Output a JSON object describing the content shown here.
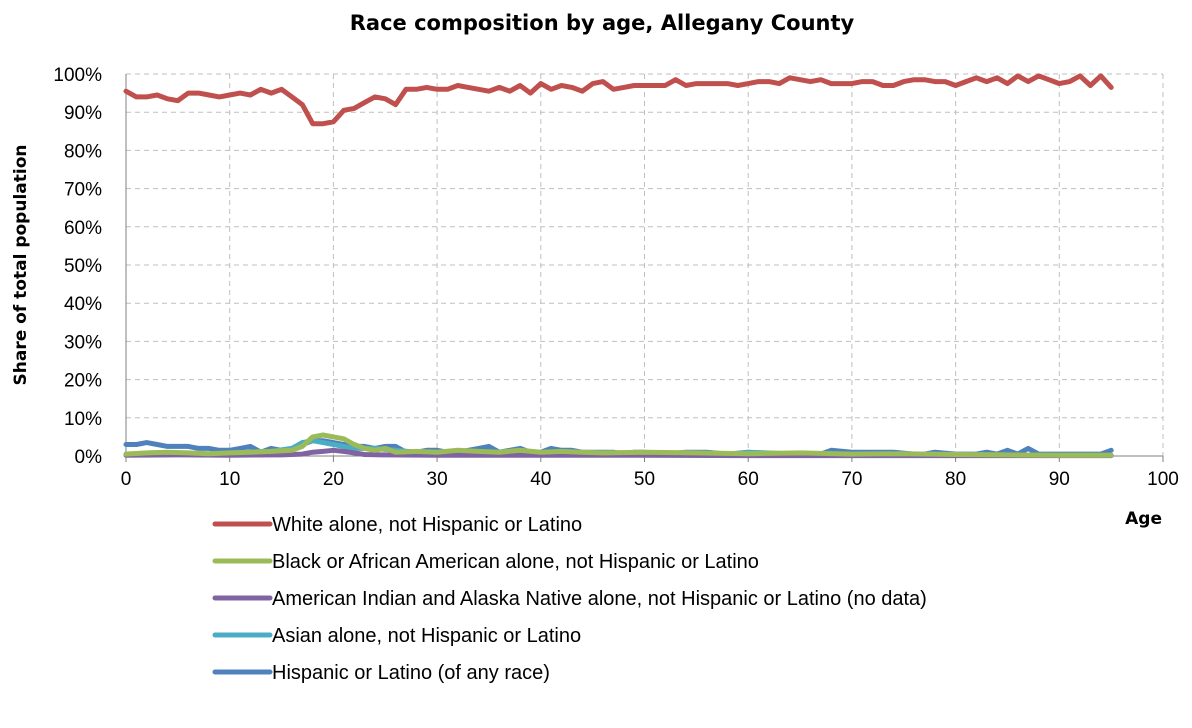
{
  "chart_data": {
    "type": "line",
    "title": "Race composition by age, Allegany County",
    "xlabel": "Age",
    "ylabel": "Share of total population",
    "xlim": [
      0,
      100
    ],
    "ylim": [
      0,
      1
    ],
    "x_ticks": [
      "0",
      "10",
      "20",
      "30",
      "40",
      "50",
      "60",
      "70",
      "80",
      "90",
      "100"
    ],
    "y_ticks": [
      "0%",
      "10%",
      "20%",
      "30%",
      "40%",
      "50%",
      "60%",
      "70%",
      "80%",
      "90%",
      "100%"
    ],
    "grid": "dashed",
    "legend_position": "bottom",
    "series": [
      {
        "name": "White alone, not Hispanic or Latino",
        "color": "#C0504D",
        "x": [
          0,
          1,
          2,
          3,
          4,
          5,
          6,
          7,
          8,
          9,
          10,
          11,
          12,
          13,
          14,
          15,
          16,
          17,
          18,
          19,
          20,
          21,
          22,
          23,
          24,
          25,
          26,
          27,
          28,
          29,
          30,
          31,
          32,
          33,
          34,
          35,
          36,
          37,
          38,
          39,
          40,
          41,
          42,
          43,
          44,
          45,
          46,
          47,
          48,
          49,
          50,
          51,
          52,
          53,
          54,
          55,
          56,
          57,
          58,
          59,
          60,
          61,
          62,
          63,
          64,
          65,
          66,
          67,
          68,
          69,
          70,
          71,
          72,
          73,
          74,
          75,
          76,
          77,
          78,
          79,
          80,
          81,
          82,
          83,
          84,
          85,
          86,
          87,
          88,
          89,
          90,
          91,
          92,
          93,
          94,
          95
        ],
        "values": [
          0.955,
          0.94,
          0.94,
          0.945,
          0.935,
          0.93,
          0.95,
          0.95,
          0.945,
          0.94,
          0.945,
          0.95,
          0.945,
          0.96,
          0.95,
          0.96,
          0.94,
          0.92,
          0.87,
          0.87,
          0.875,
          0.905,
          0.91,
          0.925,
          0.94,
          0.935,
          0.92,
          0.96,
          0.96,
          0.965,
          0.96,
          0.96,
          0.97,
          0.965,
          0.96,
          0.955,
          0.965,
          0.955,
          0.97,
          0.95,
          0.975,
          0.96,
          0.97,
          0.965,
          0.955,
          0.975,
          0.98,
          0.96,
          0.965,
          0.97,
          0.97,
          0.97,
          0.97,
          0.985,
          0.97,
          0.975,
          0.975,
          0.975,
          0.975,
          0.97,
          0.975,
          0.98,
          0.98,
          0.975,
          0.99,
          0.985,
          0.98,
          0.985,
          0.975,
          0.975,
          0.975,
          0.98,
          0.98,
          0.97,
          0.97,
          0.98,
          0.985,
          0.985,
          0.98,
          0.98,
          0.97,
          0.98,
          0.99,
          0.98,
          0.99,
          0.975,
          0.995,
          0.98,
          0.995,
          0.985,
          0.975,
          0.98,
          0.995,
          0.97,
          0.995,
          0.965
        ]
      },
      {
        "name": "Black or African American alone, not Hispanic or Latino",
        "color": "#9BBB59",
        "x": [
          0,
          2,
          4,
          6,
          8,
          10,
          12,
          14,
          16,
          17,
          18,
          19,
          20,
          21,
          22,
          23,
          24,
          25,
          26,
          28,
          30,
          32,
          34,
          36,
          38,
          40,
          42,
          44,
          46,
          50,
          55,
          60,
          65,
          70,
          75,
          80,
          85,
          90,
          95
        ],
        "values": [
          0.005,
          0.008,
          0.01,
          0.008,
          0.006,
          0.008,
          0.01,
          0.012,
          0.015,
          0.025,
          0.05,
          0.055,
          0.05,
          0.045,
          0.03,
          0.02,
          0.015,
          0.02,
          0.01,
          0.012,
          0.01,
          0.015,
          0.012,
          0.01,
          0.015,
          0.01,
          0.012,
          0.01,
          0.008,
          0.01,
          0.008,
          0.006,
          0.008,
          0.005,
          0.006,
          0.004,
          0.003,
          0.002,
          0.002
        ]
      },
      {
        "name": "American Indian and Alaska Native alone, not Hispanic or Latino (no data)",
        "color": "#8064A2",
        "x": [
          0,
          5,
          10,
          15,
          17,
          18,
          19,
          20,
          21,
          22,
          23,
          25,
          30,
          40,
          50,
          60,
          70,
          80,
          90,
          95
        ],
        "values": [
          0.002,
          0.003,
          0.002,
          0.003,
          0.005,
          0.01,
          0.012,
          0.015,
          0.012,
          0.008,
          0.004,
          0.003,
          0.002,
          0.002,
          0.002,
          0.001,
          0.001,
          0.001,
          0.001,
          0.001
        ]
      },
      {
        "name": "Asian alone, not Hispanic or Latino",
        "color": "#4BACC6",
        "x": [
          0,
          2,
          4,
          6,
          8,
          10,
          12,
          14,
          16,
          17,
          18,
          19,
          20,
          21,
          22,
          24,
          26,
          28,
          30,
          32,
          34,
          36,
          38,
          40,
          42,
          44,
          46,
          50,
          55,
          59,
          60,
          65,
          70,
          75,
          80,
          85,
          90,
          95
        ],
        "values": [
          0.005,
          0.005,
          0.008,
          0.006,
          0.005,
          0.008,
          0.01,
          0.012,
          0.02,
          0.035,
          0.04,
          0.035,
          0.03,
          0.025,
          0.02,
          0.02,
          0.015,
          0.01,
          0.01,
          0.012,
          0.01,
          0.01,
          0.012,
          0.008,
          0.01,
          0.008,
          0.006,
          0.008,
          0.005,
          0.006,
          0.01,
          0.005,
          0.004,
          0.003,
          0.003,
          0.002,
          0.002,
          0.002
        ]
      },
      {
        "name": "Hispanic or Latino (of any race)",
        "color": "#4F81BD",
        "x": [
          0,
          1,
          2,
          3,
          4,
          5,
          6,
          7,
          8,
          9,
          10,
          11,
          12,
          13,
          14,
          15,
          16,
          17,
          18,
          19,
          20,
          21,
          22,
          23,
          24,
          25,
          26,
          27,
          28,
          29,
          30,
          31,
          32,
          33,
          34,
          35,
          36,
          37,
          38,
          39,
          40,
          41,
          42,
          43,
          44,
          45,
          46,
          47,
          48,
          49,
          50,
          52,
          54,
          56,
          58,
          60,
          62,
          64,
          66,
          67,
          68,
          70,
          72,
          74,
          76,
          77,
          78,
          80,
          82,
          83,
          84,
          85,
          86,
          87,
          88,
          90,
          92,
          94,
          95
        ],
        "values": [
          0.03,
          0.03,
          0.035,
          0.03,
          0.025,
          0.025,
          0.025,
          0.02,
          0.02,
          0.015,
          0.015,
          0.02,
          0.025,
          0.01,
          0.02,
          0.015,
          0.02,
          0.03,
          0.04,
          0.04,
          0.035,
          0.03,
          0.025,
          0.025,
          0.02,
          0.025,
          0.025,
          0.01,
          0.01,
          0.015,
          0.015,
          0.01,
          0.01,
          0.015,
          0.02,
          0.025,
          0.01,
          0.015,
          0.02,
          0.01,
          0.01,
          0.02,
          0.015,
          0.015,
          0.01,
          0.01,
          0.01,
          0.01,
          0.005,
          0.01,
          0.01,
          0.005,
          0.01,
          0.01,
          0.005,
          0.01,
          0.005,
          0.005,
          0.005,
          0.005,
          0.015,
          0.01,
          0.01,
          0.01,
          0.005,
          0.005,
          0.01,
          0.005,
          0.005,
          0.01,
          0.005,
          0.015,
          0.005,
          0.02,
          0.005,
          0.005,
          0.005,
          0.005,
          0.015
        ]
      }
    ]
  }
}
